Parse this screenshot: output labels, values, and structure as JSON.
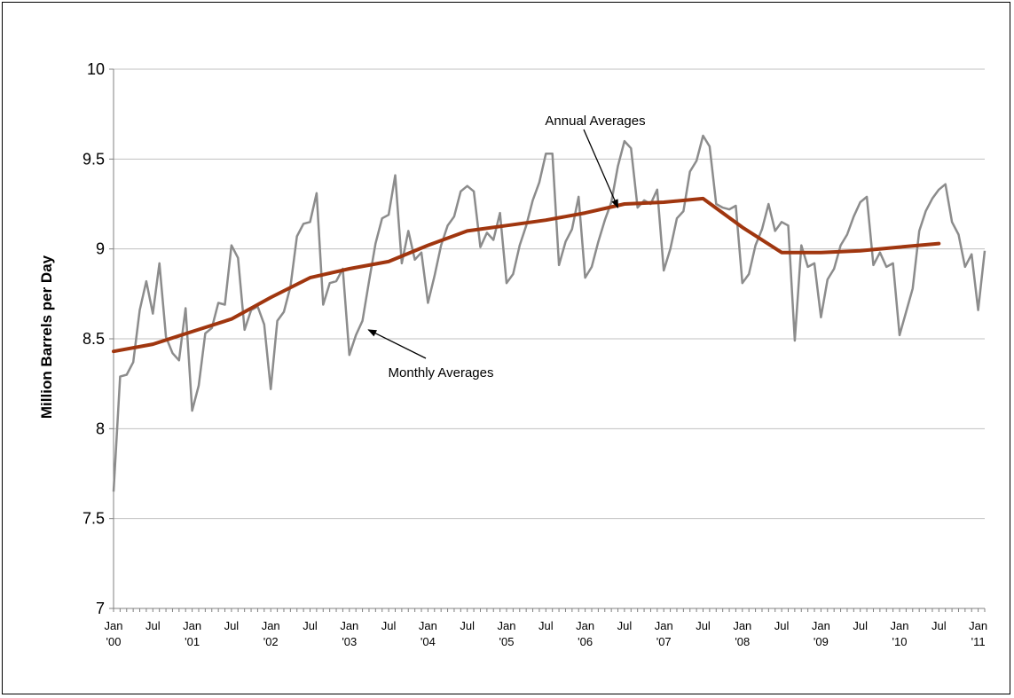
{
  "chart_data": {
    "type": "line",
    "title": "",
    "xlabel": "",
    "ylabel": "Million Barrels per Day",
    "ylim": [
      7,
      10
    ],
    "yticks": [
      "7",
      "7.5",
      "8",
      "8.5",
      "9",
      "9.5",
      "10"
    ],
    "xlim": [
      "2000-01",
      "2011-02"
    ],
    "xtick_labels": [
      {
        "month": "Jan",
        "year": "'00"
      },
      {
        "month": "Jul",
        "year": ""
      },
      {
        "month": "Jan",
        "year": "'01"
      },
      {
        "month": "Jul",
        "year": ""
      },
      {
        "month": "Jan",
        "year": "'02"
      },
      {
        "month": "Jul",
        "year": ""
      },
      {
        "month": "Jan",
        "year": "'03"
      },
      {
        "month": "Jul",
        "year": ""
      },
      {
        "month": "Jan",
        "year": "'04"
      },
      {
        "month": "Jul",
        "year": ""
      },
      {
        "month": "Jan",
        "year": "'05"
      },
      {
        "month": "Jul",
        "year": ""
      },
      {
        "month": "Jan",
        "year": "'06"
      },
      {
        "month": "Jul",
        "year": ""
      },
      {
        "month": "Jan",
        "year": "'07"
      },
      {
        "month": "Jul",
        "year": ""
      },
      {
        "month": "Jan",
        "year": "'08"
      },
      {
        "month": "Jul",
        "year": ""
      },
      {
        "month": "Jan",
        "year": "'09"
      },
      {
        "month": "Jul",
        "year": ""
      },
      {
        "month": "Jan",
        "year": "'10"
      },
      {
        "month": "Jul",
        "year": ""
      },
      {
        "month": "Jan",
        "year": "'11"
      }
    ],
    "grid": true,
    "colors": {
      "monthly": "#8c8c8c",
      "annual": "#a0360f",
      "grid": "#c0c0c0",
      "axis": "#808080"
    },
    "series": [
      {
        "id": "monthly",
        "x_start": "2000-01",
        "x_step": "1 month",
        "values": [
          7.65,
          8.29,
          8.3,
          8.37,
          8.66,
          8.82,
          8.64,
          8.92,
          8.51,
          8.42,
          8.38,
          8.67,
          8.1,
          8.24,
          8.53,
          8.56,
          8.7,
          8.69,
          9.02,
          8.95,
          8.55,
          8.66,
          8.68,
          8.58,
          8.22,
          8.6,
          8.65,
          8.79,
          9.07,
          9.14,
          9.15,
          9.31,
          8.69,
          8.81,
          8.82,
          8.89,
          8.41,
          8.52,
          8.6,
          8.82,
          9.03,
          9.17,
          9.19,
          9.41,
          8.92,
          9.1,
          8.94,
          8.98,
          8.7,
          8.85,
          9.02,
          9.13,
          9.18,
          9.32,
          9.35,
          9.32,
          9.01,
          9.09,
          9.05,
          9.2,
          8.81,
          8.86,
          9.02,
          9.13,
          9.27,
          9.37,
          9.53,
          9.53,
          8.91,
          9.04,
          9.11,
          9.29,
          8.84,
          8.9,
          9.04,
          9.16,
          9.26,
          9.46,
          9.6,
          9.56,
          9.23,
          9.27,
          9.25,
          9.33,
          8.88,
          9.0,
          9.17,
          9.21,
          9.43,
          9.49,
          9.63,
          9.57,
          9.25,
          9.23,
          9.22,
          9.24,
          8.81,
          8.86,
          9.02,
          9.11,
          9.25,
          9.1,
          9.15,
          9.13,
          8.49,
          9.02,
          8.9,
          8.92,
          8.62,
          8.83,
          8.89,
          9.02,
          9.08,
          9.18,
          9.26,
          9.29,
          8.91,
          8.98,
          8.9,
          8.92,
          8.52,
          8.65,
          8.78,
          9.1,
          9.21,
          9.28,
          9.33,
          9.36,
          9.15,
          9.08,
          8.9,
          8.97,
          8.66,
          8.99
        ]
      },
      {
        "id": "annual",
        "points": [
          {
            "x": "2000-01",
            "y": 8.43
          },
          {
            "x": "2000-07",
            "y": 8.47
          },
          {
            "x": "2001-01",
            "y": 8.54
          },
          {
            "x": "2001-07",
            "y": 8.61
          },
          {
            "x": "2002-01",
            "y": 8.73
          },
          {
            "x": "2002-07",
            "y": 8.84
          },
          {
            "x": "2003-01",
            "y": 8.89
          },
          {
            "x": "2003-07",
            "y": 8.93
          },
          {
            "x": "2004-01",
            "y": 9.02
          },
          {
            "x": "2004-07",
            "y": 9.1
          },
          {
            "x": "2005-01",
            "y": 9.13
          },
          {
            "x": "2005-07",
            "y": 9.16
          },
          {
            "x": "2006-01",
            "y": 9.2
          },
          {
            "x": "2006-07",
            "y": 9.25
          },
          {
            "x": "2007-01",
            "y": 9.26
          },
          {
            "x": "2007-07",
            "y": 9.28
          },
          {
            "x": "2008-01",
            "y": 9.12
          },
          {
            "x": "2008-07",
            "y": 8.98
          },
          {
            "x": "2009-01",
            "y": 8.98
          },
          {
            "x": "2009-07",
            "y": 8.99
          },
          {
            "x": "2010-01",
            "y": 9.01
          },
          {
            "x": "2010-07",
            "y": 9.03
          }
        ]
      }
    ],
    "annotations": [
      {
        "text": "Annual Averages",
        "points_to": {
          "x": "2006-06",
          "y": 9.22
        }
      },
      {
        "text": "Monthly Averages",
        "points_to": {
          "x": "2003-02",
          "y": 8.58
        }
      }
    ]
  }
}
